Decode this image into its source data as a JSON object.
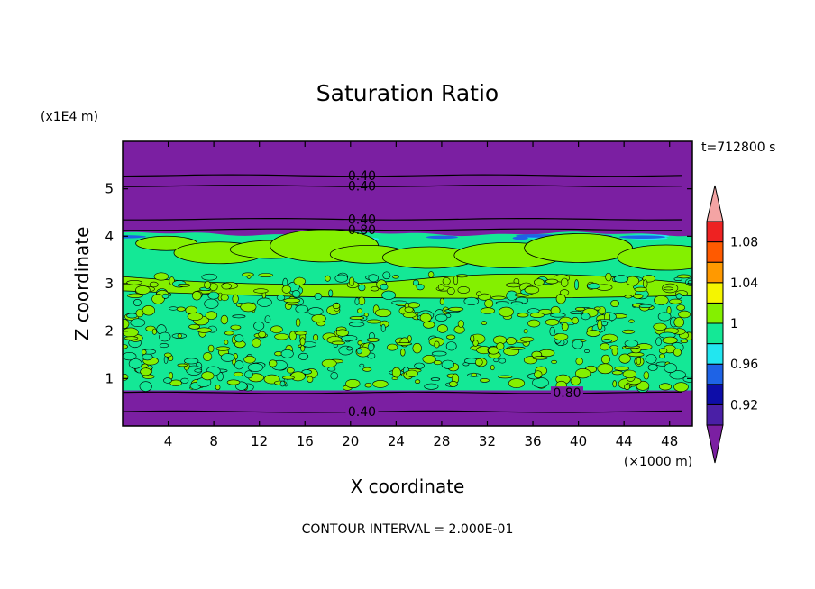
{
  "chart_data": {
    "type": "heatmap",
    "title": "Saturation Ratio",
    "xlabel": "X coordinate",
    "ylabel": "Z coordinate",
    "x_unit": "(×1000 m)",
    "y_unit": "(x1E4 m)",
    "time_label": "t=712800 s",
    "footer": "CONTOUR INTERVAL = 2.000E-01",
    "xlim": [
      0,
      50
    ],
    "ylim": [
      0,
      6
    ],
    "x_ticks": [
      "4",
      "8",
      "12",
      "16",
      "20",
      "24",
      "28",
      "32",
      "36",
      "40",
      "44",
      "48"
    ],
    "x_tick_values": [
      4,
      8,
      12,
      16,
      20,
      24,
      28,
      32,
      36,
      40,
      44,
      48
    ],
    "y_ticks": [
      "1",
      "2",
      "3",
      "4",
      "5"
    ],
    "y_tick_values": [
      1,
      2,
      3,
      4,
      5
    ],
    "colorbar": {
      "tick_labels": [
        "1.08",
        "1.04",
        "1",
        "0.96",
        "0.92"
      ],
      "levels": [
        {
          "range": "< 0.90",
          "color": "#7b1fa2"
        },
        {
          "range": "0.90-0.92",
          "color": "#4a1fa6"
        },
        {
          "range": "0.92-0.94",
          "color": "#0d0da8"
        },
        {
          "range": "0.94-0.96",
          "color": "#1e63e6"
        },
        {
          "range": "0.96-0.98",
          "color": "#22e6f0"
        },
        {
          "range": "0.98-1.00",
          "color": "#14e896"
        },
        {
          "range": "1.00-1.02",
          "color": "#84f000"
        },
        {
          "range": "1.02-1.04",
          "color": "#f5f500"
        },
        {
          "range": "1.04-1.06",
          "color": "#ff9900"
        },
        {
          "range": "1.06-1.08",
          "color": "#ff5a00"
        },
        {
          "range": "1.08-1.10",
          "color": "#ee2222"
        },
        {
          "range": "> 1.10",
          "color": "#f4a4a4"
        }
      ]
    },
    "field": {
      "upper_dry_layer": {
        "z_range": [
          4.05,
          6.0
        ],
        "value": "< 0.90",
        "color": "#7b1fa2"
      },
      "cloud_layer": {
        "z_range": [
          0.75,
          4.05
        ],
        "values": [
          "0.98-1.00",
          "1.00-1.02"
        ],
        "colors": [
          "#14e896",
          "#84f000"
        ]
      },
      "lower_dry_layer": {
        "z_range": [
          0.0,
          0.75
        ],
        "value": "< 0.90",
        "color": "#7b1fa2"
      }
    },
    "contour_lines": [
      {
        "label": "0.40",
        "z": 5.28,
        "label_x": 21
      },
      {
        "label": "0.40",
        "z": 5.06,
        "label_x": 21
      },
      {
        "label": "0.40",
        "z": 4.36,
        "label_x": 21
      },
      {
        "label": "0.80",
        "z": 4.14,
        "label_x": 21
      },
      {
        "label": "0.80",
        "z": 0.7,
        "label_x": 39
      },
      {
        "label": "0.40",
        "z": 0.3,
        "label_x": 21
      }
    ],
    "colors": {
      "background": "#7b1fa2",
      "moist": "#14e896",
      "supersaturated": "#84f000"
    }
  }
}
